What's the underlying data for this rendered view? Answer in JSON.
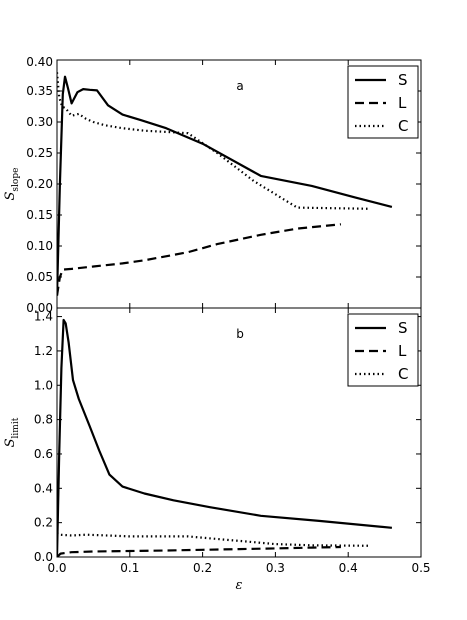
{
  "chart_data": [
    {
      "type": "line",
      "panel_label": "a",
      "ylabel": "S",
      "ylabel_sub": "slope",
      "xlabel": "",
      "xlim": [
        0.0,
        0.5
      ],
      "ylim": [
        0.0,
        0.4
      ],
      "xticks": [],
      "yticks": [
        "0.00",
        "0.05",
        "0.10",
        "0.15",
        "0.20",
        "0.25",
        "0.30",
        "0.35",
        "0.40"
      ],
      "legend": "top-right",
      "grid": false,
      "series": [
        {
          "name": "S",
          "style": "solid",
          "x": [
            0.0,
            0.004,
            0.008,
            0.011,
            0.015,
            0.02,
            0.028,
            0.036,
            0.045,
            0.055,
            0.07,
            0.09,
            0.115,
            0.15,
            0.2,
            0.28,
            0.35,
            0.41,
            0.46
          ],
          "y": [
            0.02,
            0.2,
            0.345,
            0.373,
            0.355,
            0.33,
            0.348,
            0.353,
            0.352,
            0.351,
            0.327,
            0.312,
            0.303,
            0.29,
            0.265,
            0.213,
            0.197,
            0.178,
            0.163
          ]
        },
        {
          "name": "L",
          "style": "dashed",
          "x": [
            0.0,
            0.004,
            0.008,
            0.02,
            0.05,
            0.09,
            0.12,
            0.18,
            0.22,
            0.28,
            0.33,
            0.39
          ],
          "y": [
            0.02,
            0.05,
            0.062,
            0.063,
            0.067,
            0.072,
            0.077,
            0.09,
            0.103,
            0.118,
            0.128,
            0.135
          ]
        },
        {
          "name": "C",
          "style": "dotted",
          "x": [
            0.0,
            0.003,
            0.007,
            0.012,
            0.02,
            0.03,
            0.04,
            0.05,
            0.065,
            0.09,
            0.12,
            0.15,
            0.18,
            0.22,
            0.27,
            0.33,
            0.38,
            0.43
          ],
          "y": [
            0.38,
            0.34,
            0.325,
            0.322,
            0.31,
            0.313,
            0.305,
            0.3,
            0.295,
            0.29,
            0.286,
            0.284,
            0.282,
            0.25,
            0.205,
            0.162,
            0.161,
            0.16
          ]
        }
      ]
    },
    {
      "type": "line",
      "panel_label": "b",
      "ylabel": "S",
      "ylabel_sub": "limit",
      "xlabel": "ε",
      "xlim": [
        0.0,
        0.5
      ],
      "ylim": [
        0.0,
        1.45
      ],
      "xticks": [
        "0.0",
        "0.1",
        "0.2",
        "0.3",
        "0.4",
        "0.5"
      ],
      "yticks": [
        "0.0",
        "0.2",
        "0.4",
        "0.6",
        "0.8",
        "1.0",
        "1.2",
        "1.4"
      ],
      "legend": "top-right",
      "grid": false,
      "series": [
        {
          "name": "S",
          "style": "solid",
          "x": [
            0.0,
            0.003,
            0.006,
            0.009,
            0.012,
            0.016,
            0.022,
            0.03,
            0.045,
            0.058,
            0.072,
            0.09,
            0.12,
            0.16,
            0.21,
            0.28,
            0.36,
            0.46
          ],
          "y": [
            0.0,
            0.6,
            1.1,
            1.38,
            1.36,
            1.25,
            1.03,
            0.92,
            0.76,
            0.62,
            0.48,
            0.41,
            0.37,
            0.33,
            0.29,
            0.24,
            0.21,
            0.17
          ]
        },
        {
          "name": "L",
          "style": "dashed",
          "x": [
            0.0,
            0.005,
            0.02,
            0.05,
            0.1,
            0.15,
            0.2,
            0.25,
            0.3,
            0.35,
            0.39
          ],
          "y": [
            0.0,
            0.02,
            0.028,
            0.032,
            0.035,
            0.038,
            0.042,
            0.046,
            0.05,
            0.055,
            0.058
          ]
        },
        {
          "name": "C",
          "style": "dotted",
          "x": [
            0.0,
            0.003,
            0.02,
            0.04,
            0.07,
            0.1,
            0.13,
            0.16,
            0.18,
            0.22,
            0.26,
            0.3,
            0.35,
            0.43
          ],
          "y": [
            0.14,
            0.13,
            0.125,
            0.13,
            0.125,
            0.12,
            0.12,
            0.12,
            0.12,
            0.105,
            0.09,
            0.075,
            0.068,
            0.065
          ]
        }
      ]
    }
  ]
}
